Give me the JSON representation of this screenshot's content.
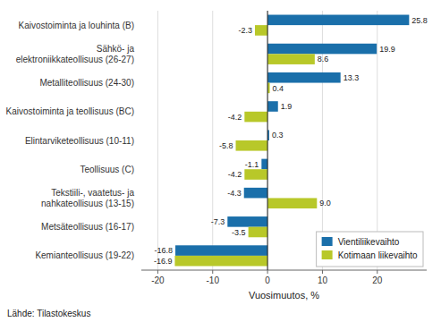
{
  "chart_data": {
    "type": "bar",
    "orientation": "horizontal",
    "categories": [
      "Kaivostoiminta ja louhinta (B)",
      "Sähkö- ja\nelektroniikkateollisuus (26-27)",
      "Metalliteollisuus (24-30)",
      "Kaivostoiminta ja teollisuus (BC)",
      "Elintarviketeollisuus (10-11)",
      "Teollisuus (C)",
      "Tekstiili-, vaatetus- ja\nnahkateollisuus (13-15)",
      "Metsäteollisuus (16-17)",
      "Kemianteollisuus (19-22)"
    ],
    "series": [
      {
        "name": "Vientiliikevaihto",
        "color": "#1a6faa",
        "values": [
          25.8,
          19.9,
          13.3,
          1.9,
          0.3,
          -1.1,
          -4.3,
          -7.3,
          -16.8
        ],
        "value_labels": [
          "25.8",
          "19.9",
          "13.3",
          "1.9",
          "0.3",
          "-1.1",
          "-4.3",
          "-7.3",
          "-16.8"
        ]
      },
      {
        "name": "Kotimaan liikevaihto",
        "color": "#b8c829",
        "values": [
          -2.3,
          8.6,
          0.4,
          -4.2,
          -5.8,
          -4.2,
          9.0,
          -3.5,
          -16.9
        ],
        "value_labels": [
          "-2.3",
          "8.6",
          "0.4",
          "-4.2",
          "-5.8",
          "-4.2",
          "9.0",
          "-3.5",
          "-16.9"
        ]
      }
    ],
    "xlabel": "Vuosimuutos, %",
    "xlim": [
      -23,
      29
    ],
    "xticks": [
      -20,
      -10,
      0,
      10,
      20
    ],
    "grid": true,
    "legend": "lower right",
    "data_labels": true,
    "annotations": [
      "Lähde: Tilastokeskus"
    ]
  }
}
